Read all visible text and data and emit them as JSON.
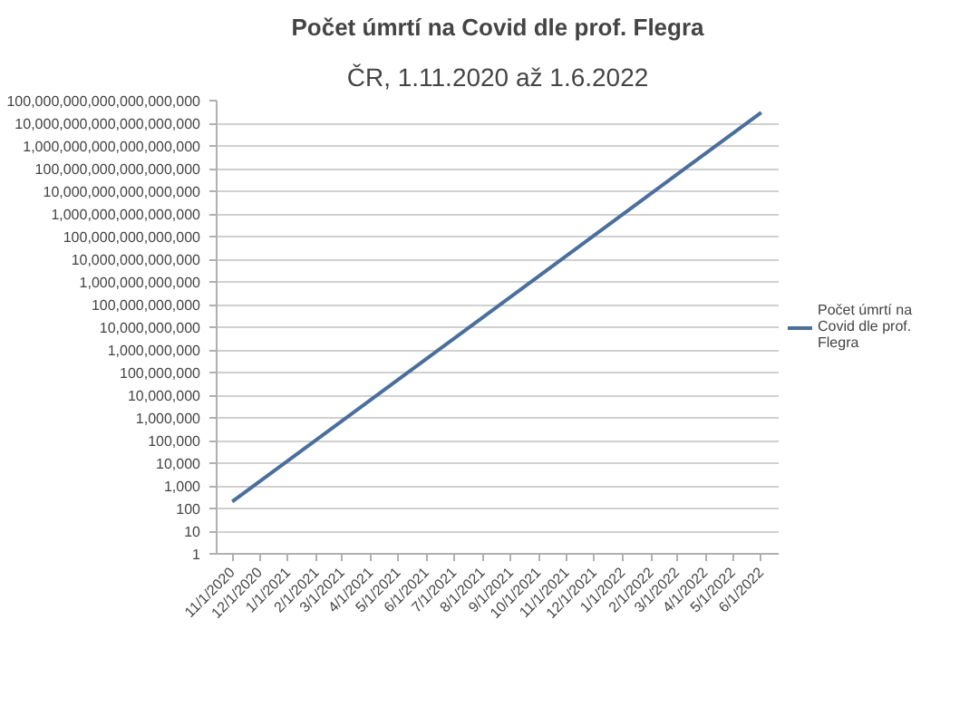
{
  "chart_data": {
    "type": "line",
    "title": "Počet úmrtí na Covid dle prof. Flegra",
    "subtitle": "ČR, 1.11.2020 až 1.6.2022",
    "x": [
      "2020-11-01",
      "2022-06-01"
    ],
    "series": [
      {
        "name": "Počet úmrtí na Covid dle prof. Flegra",
        "color": "#4a6f9c",
        "values": [
          200,
          30000000000000000000
        ]
      }
    ],
    "log": "y",
    "grid": "y",
    "legend": "right",
    "xlim": [
      "2020-10-15",
      "2022-06-20"
    ],
    "xticks": [
      {
        "value": "2020-11-01",
        "label": "11/1/2020"
      },
      {
        "value": "2020-12-01",
        "label": "12/1/2020"
      },
      {
        "value": "2021-01-01",
        "label": "1/1/2021"
      },
      {
        "value": "2021-02-01",
        "label": "2/1/2021"
      },
      {
        "value": "2021-03-01",
        "label": "3/1/2021"
      },
      {
        "value": "2021-04-01",
        "label": "4/1/2021"
      },
      {
        "value": "2021-05-01",
        "label": "5/1/2021"
      },
      {
        "value": "2021-06-01",
        "label": "6/1/2021"
      },
      {
        "value": "2021-07-01",
        "label": "7/1/2021"
      },
      {
        "value": "2021-08-01",
        "label": "8/1/2021"
      },
      {
        "value": "2021-09-01",
        "label": "9/1/2021"
      },
      {
        "value": "2021-10-01",
        "label": "10/1/2021"
      },
      {
        "value": "2021-11-01",
        "label": "11/1/2021"
      },
      {
        "value": "2021-12-01",
        "label": "12/1/2021"
      },
      {
        "value": "2022-01-01",
        "label": "1/1/2022"
      },
      {
        "value": "2022-02-01",
        "label": "2/1/2022"
      },
      {
        "value": "2022-03-01",
        "label": "3/1/2022"
      },
      {
        "value": "2022-04-01",
        "label": "4/1/2022"
      },
      {
        "value": "2022-05-01",
        "label": "5/1/2022"
      },
      {
        "value": "2022-06-01",
        "label": "6/1/2022"
      }
    ],
    "ylim": [
      1,
      100000000000000000000
    ],
    "yticks": [
      1,
      10,
      {
        "value": 100,
        "label": "100"
      },
      {
        "value": 1000,
        "label": "1,000"
      },
      {
        "value": 10000,
        "label": "10,000"
      },
      {
        "value": 100000,
        "label": "100,000"
      },
      {
        "value": 1000000,
        "label": "1,000,000"
      },
      {
        "value": 10000000,
        "label": "10,000,000"
      },
      {
        "value": 100000000,
        "label": "100,000,000"
      },
      {
        "value": 1000000000,
        "label": "1,000,000,000"
      },
      {
        "value": 10000000000,
        "label": "10,000,000,000"
      },
      {
        "value": 100000000000,
        "label": "100,000,000,000"
      },
      {
        "value": 1000000000000,
        "label": "1,000,000,000,000"
      },
      {
        "value": 10000000000000,
        "label": "10,000,000,000,000"
      },
      {
        "value": 100000000000000,
        "label": "100,000,000,000,000"
      },
      {
        "value": 1000000000000000,
        "label": "1,000,000,000,000,000"
      },
      {
        "value": 10000000000000000,
        "label": "10,000,000,000,000,000"
      },
      {
        "value": 100000000000000000,
        "label": "100,000,000,000,000,000"
      },
      {
        "value": 1000000000000000000,
        "label": "1,000,000,000,000,000,000"
      },
      {
        "value": 10000000000000000000,
        "label": "10,000,000,000,000,000,000"
      },
      {
        "value": 100000000000000000000,
        "label": "100,000,000,000,000,000,000"
      }
    ]
  }
}
